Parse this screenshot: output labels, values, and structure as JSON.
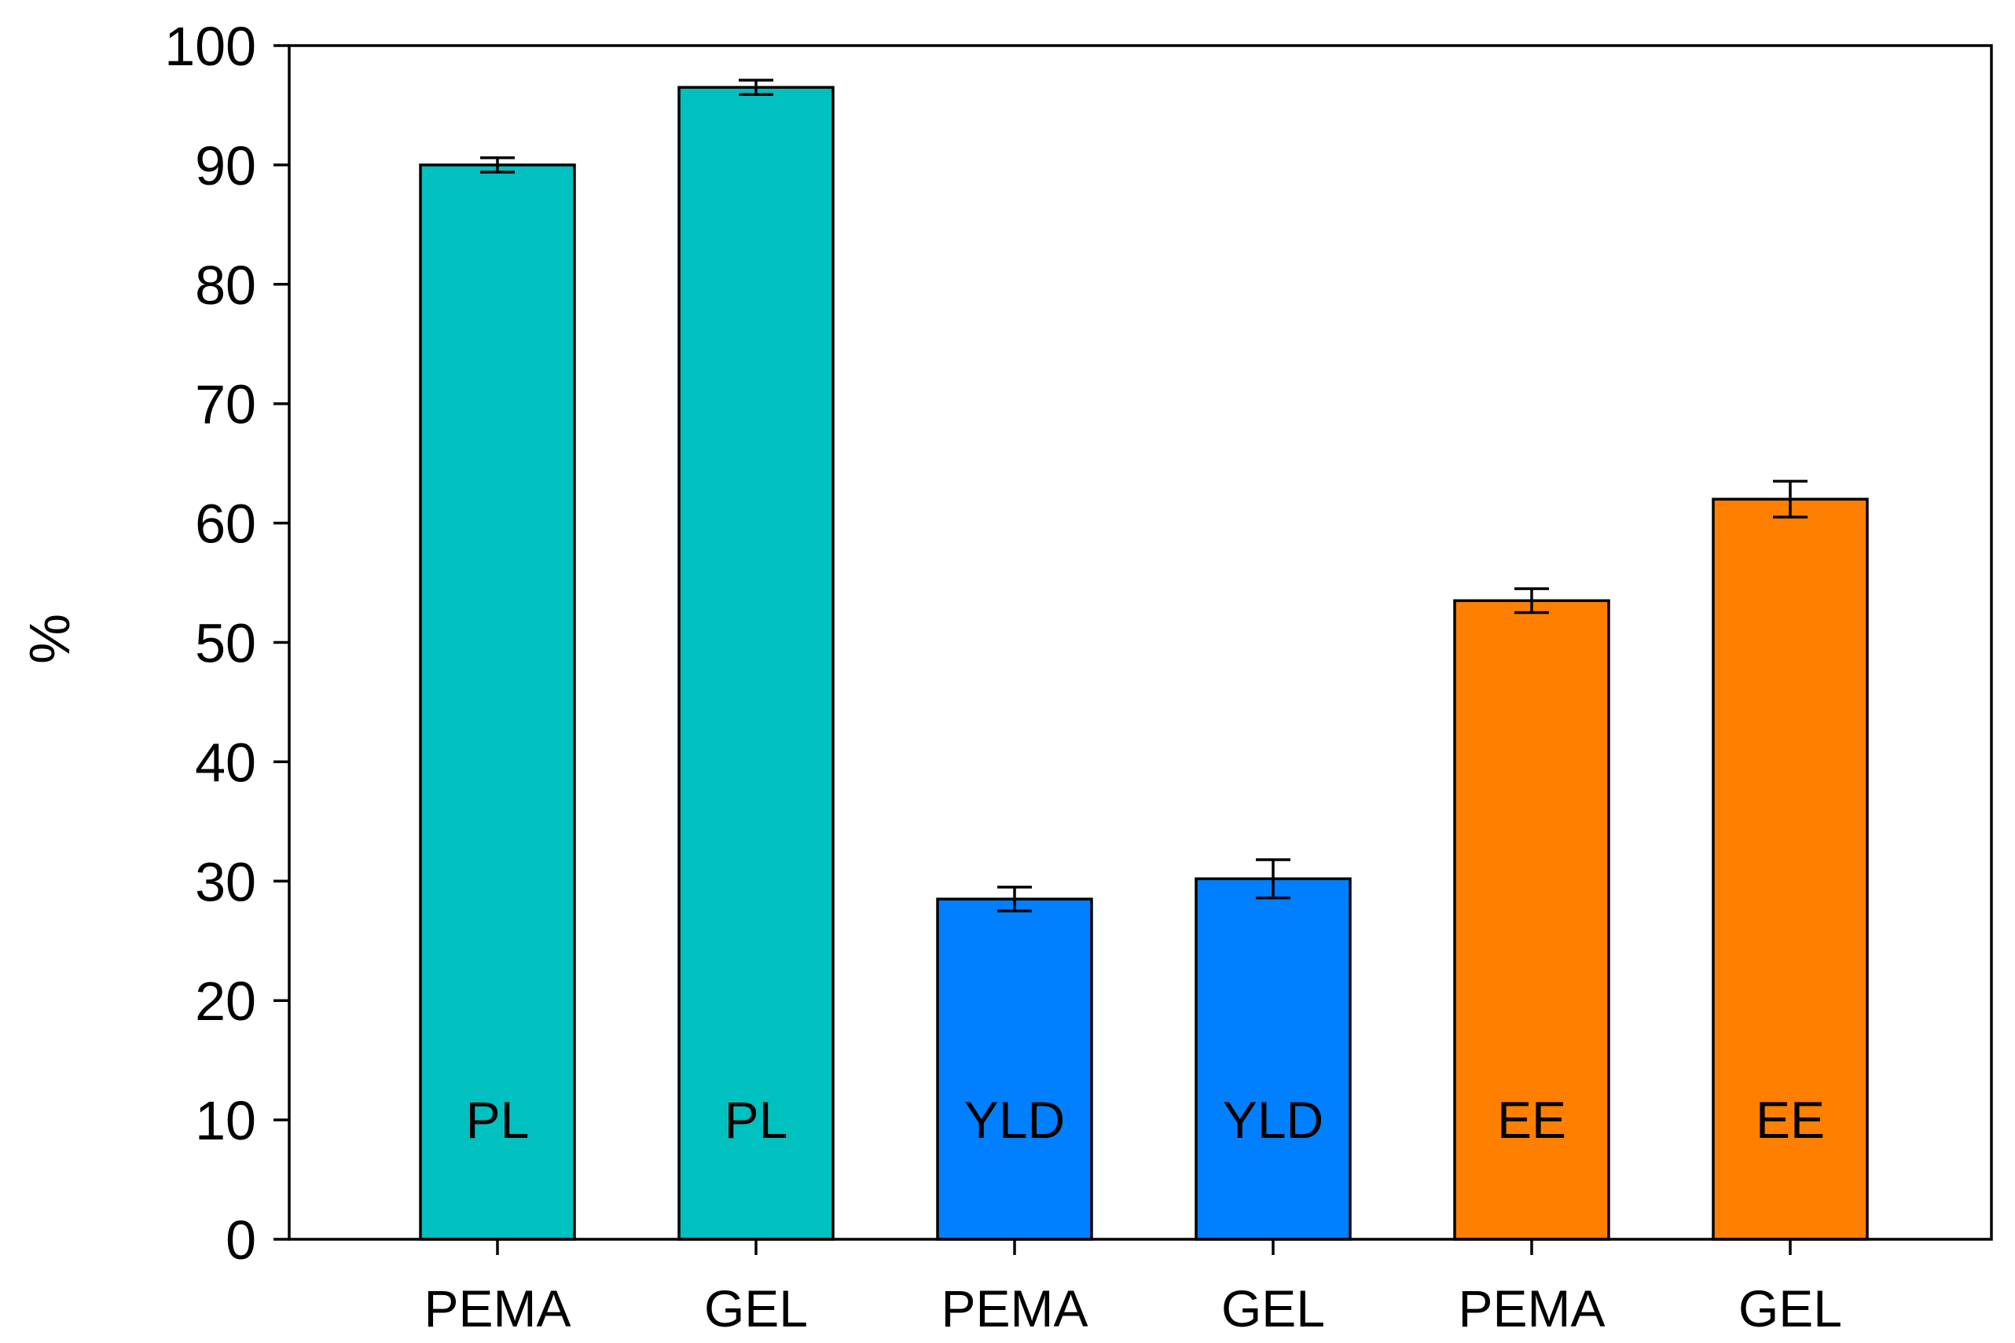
{
  "chart_data": {
    "type": "bar",
    "title": "",
    "xlabel": "",
    "ylabel": "%",
    "ylim": [
      0,
      100
    ],
    "yticks": [
      0,
      10,
      20,
      30,
      40,
      50,
      60,
      70,
      80,
      90,
      100
    ],
    "grid": false,
    "categories": [
      "PEMA",
      "GEL",
      "PEMA",
      "GEL",
      "PEMA",
      "GEL"
    ],
    "values": [
      90,
      96.5,
      28.5,
      30.2,
      53.5,
      62
    ],
    "errors": [
      0.6,
      0.6,
      1.0,
      1.6,
      1.0,
      1.5
    ],
    "bar_labels": [
      "PL",
      "PL",
      "YLD",
      "YLD",
      "EE",
      "EE"
    ],
    "bar_colors": [
      "#00c0c0",
      "#00c0c0",
      "#0080ff",
      "#0080ff",
      "#ff8000",
      "#ff8000"
    ]
  }
}
